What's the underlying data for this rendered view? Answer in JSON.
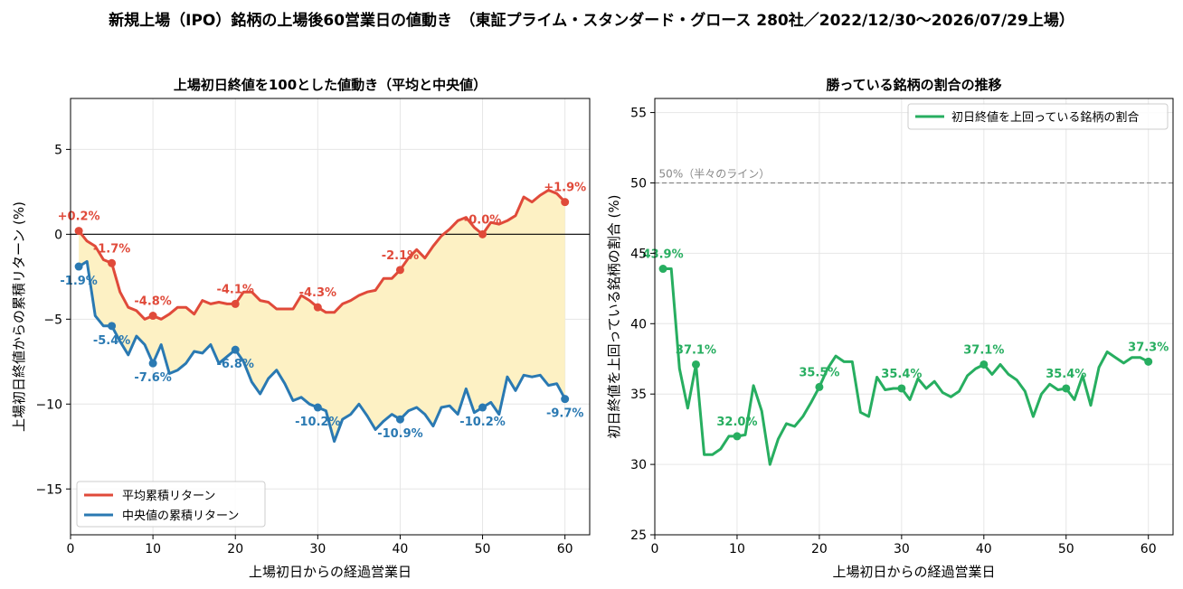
{
  "page": {
    "suptitle": "新規上場（IPO）銘柄の上場後60営業日の値動き　（東証プライム・スタンダード・グロース 280社／2022/12/30～2026/07/29上場）"
  },
  "colors": {
    "mean": "#e04a3a",
    "median": "#2a79b2",
    "fill": "#fdf1c4",
    "winrate": "#27ae60",
    "grid": "#e6e6e6",
    "ref": "#888888"
  },
  "chart_data": [
    {
      "type": "line",
      "title": "上場初日終値を100とした値動き（平均と中央値）",
      "xlabel": "上場初日からの経過営業日",
      "ylabel": "上場初日終値からの累積リターン (%)",
      "xlim": [
        0,
        63
      ],
      "ylim": [
        -17.7,
        8
      ],
      "xticks": [
        0,
        10,
        20,
        30,
        40,
        50,
        60
      ],
      "yticks": [
        -15,
        -10,
        -5,
        0,
        5
      ],
      "grid": true,
      "legend_position": "lower-left",
      "x": [
        1,
        2,
        3,
        4,
        5,
        6,
        7,
        8,
        9,
        10,
        11,
        12,
        13,
        14,
        15,
        16,
        17,
        18,
        19,
        20,
        21,
        22,
        23,
        24,
        25,
        26,
        27,
        28,
        29,
        30,
        31,
        32,
        33,
        34,
        35,
        36,
        37,
        38,
        39,
        40,
        41,
        42,
        43,
        44,
        45,
        46,
        47,
        48,
        49,
        50,
        51,
        52,
        53,
        54,
        55,
        56,
        57,
        58,
        59,
        60
      ],
      "series": [
        {
          "name": "平均累積リターン",
          "color": "#e04a3a",
          "values": [
            0.2,
            -0.4,
            -0.7,
            -1.5,
            -1.7,
            -3.4,
            -4.3,
            -4.5,
            -5.0,
            -4.8,
            -5.0,
            -4.7,
            -4.3,
            -4.3,
            -4.7,
            -3.9,
            -4.1,
            -4.0,
            -4.1,
            -4.1,
            -3.4,
            -3.4,
            -3.9,
            -4.0,
            -4.4,
            -4.4,
            -4.4,
            -3.6,
            -3.9,
            -4.3,
            -4.6,
            -4.6,
            -4.1,
            -3.9,
            -3.6,
            -3.4,
            -3.3,
            -2.6,
            -2.6,
            -2.1,
            -1.4,
            -0.9,
            -1.4,
            -0.7,
            -0.1,
            0.3,
            0.8,
            1.0,
            0.4,
            0.0,
            0.7,
            0.6,
            0.8,
            1.1,
            2.2,
            1.9,
            2.3,
            2.6,
            2.4,
            1.9
          ]
        },
        {
          "name": "中央値の累積リターン",
          "color": "#2a79b2",
          "values": [
            -1.9,
            -1.6,
            -4.8,
            -5.4,
            -5.4,
            -6.3,
            -7.1,
            -6.0,
            -6.5,
            -7.6,
            -6.5,
            -8.2,
            -8.0,
            -7.6,
            -6.9,
            -7.0,
            -6.5,
            -7.6,
            -7.2,
            -6.8,
            -7.5,
            -8.7,
            -9.4,
            -8.5,
            -8.0,
            -8.8,
            -9.8,
            -9.6,
            -10.0,
            -10.2,
            -10.4,
            -12.2,
            -10.9,
            -10.6,
            -10.0,
            -10.7,
            -11.5,
            -11.0,
            -10.6,
            -10.9,
            -10.4,
            -10.2,
            -10.6,
            -11.3,
            -10.2,
            -10.1,
            -10.6,
            -9.1,
            -10.5,
            -10.2,
            -9.9,
            -10.6,
            -8.4,
            -9.2,
            -8.3,
            -8.4,
            -8.3,
            -8.9,
            -8.8,
            -9.7
          ]
        }
      ],
      "fill_between": {
        "color": "#fdf1c4"
      },
      "zero_line": 0,
      "annotations_mean": [
        {
          "x": 1,
          "y": 0.2,
          "text": "+0.2%"
        },
        {
          "x": 5,
          "y": -1.7,
          "text": "-1.7%"
        },
        {
          "x": 10,
          "y": -4.8,
          "text": "-4.8%"
        },
        {
          "x": 20,
          "y": -4.1,
          "text": "-4.1%"
        },
        {
          "x": 30,
          "y": -4.3,
          "text": "-4.3%"
        },
        {
          "x": 40,
          "y": -2.1,
          "text": "-2.1%"
        },
        {
          "x": 50,
          "y": 0.0,
          "text": "-0.0%"
        },
        {
          "x": 60,
          "y": 1.9,
          "text": "+1.9%"
        }
      ],
      "annotations_median": [
        {
          "x": 1,
          "y": -1.9,
          "text": "-1.9%"
        },
        {
          "x": 5,
          "y": -5.4,
          "text": "-5.4%"
        },
        {
          "x": 10,
          "y": -7.6,
          "text": "-7.6%"
        },
        {
          "x": 20,
          "y": -6.8,
          "text": "-6.8%"
        },
        {
          "x": 30,
          "y": -10.2,
          "text": "-10.2%"
        },
        {
          "x": 40,
          "y": -10.9,
          "text": "-10.9%"
        },
        {
          "x": 50,
          "y": -10.2,
          "text": "-10.2%"
        },
        {
          "x": 60,
          "y": -9.7,
          "text": "-9.7%"
        }
      ]
    },
    {
      "type": "line",
      "title": "勝っている銘柄の割合の推移",
      "xlabel": "上場初日からの経過営業日",
      "ylabel": "初日終値を上回っている銘柄の割合 (%)",
      "xlim": [
        0,
        63
      ],
      "ylim": [
        25,
        56
      ],
      "xticks": [
        0,
        10,
        20,
        30,
        40,
        50,
        60
      ],
      "yticks": [
        25,
        30,
        35,
        40,
        45,
        50,
        55
      ],
      "grid": true,
      "legend_position": "top-right",
      "x": [
        1,
        2,
        3,
        4,
        5,
        6,
        7,
        8,
        9,
        10,
        11,
        12,
        13,
        14,
        15,
        16,
        17,
        18,
        19,
        20,
        21,
        22,
        23,
        24,
        25,
        26,
        27,
        28,
        29,
        30,
        31,
        32,
        33,
        34,
        35,
        36,
        37,
        38,
        39,
        40,
        41,
        42,
        43,
        44,
        45,
        46,
        47,
        48,
        49,
        50,
        51,
        52,
        53,
        54,
        55,
        56,
        57,
        58,
        59,
        60
      ],
      "series": [
        {
          "name": "初日終値を上回っている銘柄の割合",
          "color": "#27ae60",
          "values": [
            43.9,
            43.9,
            36.8,
            34.0,
            37.1,
            30.7,
            30.7,
            31.1,
            32.0,
            32.0,
            32.1,
            35.6,
            33.8,
            30.0,
            31.8,
            32.9,
            32.7,
            33.4,
            34.4,
            35.5,
            36.8,
            37.7,
            37.3,
            37.3,
            33.7,
            33.4,
            36.2,
            35.3,
            35.4,
            35.4,
            34.6,
            36.1,
            35.4,
            35.9,
            35.1,
            34.8,
            35.2,
            36.3,
            36.8,
            37.1,
            36.4,
            37.1,
            36.4,
            36.0,
            35.2,
            33.4,
            35.0,
            35.7,
            35.3,
            35.4,
            34.6,
            36.3,
            34.2,
            36.9,
            38.0,
            37.6,
            37.2,
            37.6,
            37.6,
            37.3
          ]
        }
      ],
      "reference_line": {
        "y": 50,
        "label": "50%（半々のライン）",
        "color": "#888888"
      },
      "annotations": [
        {
          "x": 1,
          "y": 43.9,
          "text": "43.9%"
        },
        {
          "x": 5,
          "y": 37.1,
          "text": "37.1%"
        },
        {
          "x": 10,
          "y": 32.0,
          "text": "32.0%"
        },
        {
          "x": 20,
          "y": 35.5,
          "text": "35.5%"
        },
        {
          "x": 30,
          "y": 35.4,
          "text": "35.4%"
        },
        {
          "x": 40,
          "y": 37.1,
          "text": "37.1%"
        },
        {
          "x": 50,
          "y": 35.4,
          "text": "35.4%"
        },
        {
          "x": 60,
          "y": 37.3,
          "text": "37.3%"
        }
      ]
    }
  ]
}
